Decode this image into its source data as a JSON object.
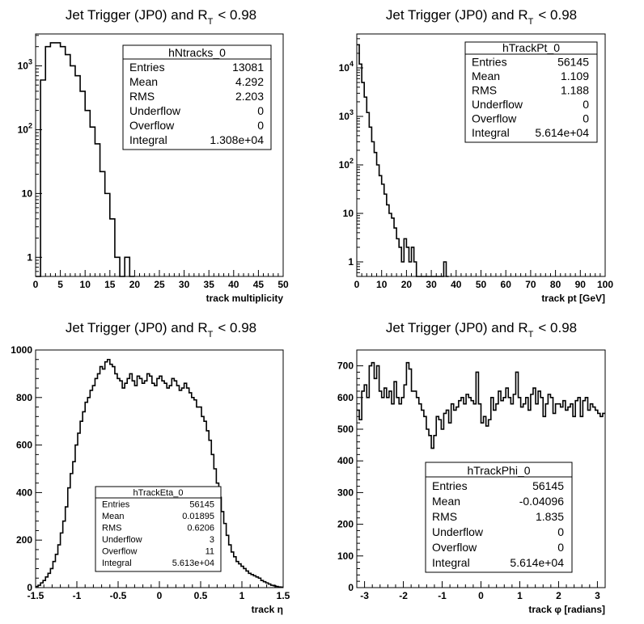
{
  "chart_data": [
    {
      "type": "histogram",
      "title": "Jet Trigger (JP0) and R",
      "title_sub": "T",
      "title_tail": "< 0.98",
      "xlabel": "track multiplicity",
      "ylabel": "",
      "log_y": true,
      "xlim": [
        0,
        50
      ],
      "ylim_log10": [
        -0.3,
        3.5
      ],
      "xticks": [
        "0",
        "5",
        "10",
        "15",
        "20",
        "25",
        "30",
        "35",
        "40",
        "45",
        "50"
      ],
      "yticks": [
        "1",
        "10",
        "10",
        "10"
      ],
      "ytick_exp": [
        "",
        "",
        "2",
        "3"
      ],
      "bin_edges_start": 0,
      "bin_width": 1,
      "values": [
        0,
        600,
        2000,
        2300,
        2300,
        2000,
        1500,
        1000,
        700,
        400,
        200,
        110,
        60,
        22,
        10,
        4,
        1,
        0,
        1,
        0
      ],
      "stats": {
        "name": "hNtracks_0",
        "rows": [
          {
            "label": "Entries",
            "value": "13081"
          },
          {
            "label": "Mean",
            "value": "4.292"
          },
          {
            "label": "RMS",
            "value": "2.203"
          },
          {
            "label": "Underflow",
            "value": "0"
          },
          {
            "label": "Overflow",
            "value": "0"
          },
          {
            "label": "Integral",
            "value": "1.308e+04"
          }
        ]
      }
    },
    {
      "type": "histogram",
      "title": "Jet Trigger (JP0) and R",
      "title_sub": "T",
      "title_tail": "< 0.98",
      "xlabel": "track pt [GeV]",
      "ylabel": "",
      "log_y": true,
      "xlim": [
        0,
        100
      ],
      "ylim_log10": [
        -0.3,
        4.7
      ],
      "xticks": [
        "0",
        "10",
        "20",
        "30",
        "40",
        "50",
        "60",
        "70",
        "80",
        "90",
        "100"
      ],
      "yticks": [
        "1",
        "10",
        "10",
        "10",
        "10"
      ],
      "ytick_exp": [
        "",
        "",
        "2",
        "3",
        "4"
      ],
      "bin_edges_start": 0,
      "bin_width": 1,
      "values": [
        30000,
        12000,
        5000,
        2500,
        1200,
        600,
        300,
        180,
        100,
        60,
        40,
        25,
        15,
        10,
        8,
        5,
        3,
        2,
        1,
        3,
        2,
        1,
        2,
        1,
        0,
        0,
        0,
        0,
        0,
        0,
        0,
        0,
        0,
        0,
        0,
        1,
        0
      ],
      "stats": {
        "name": "hTrackPt_0",
        "rows": [
          {
            "label": "Entries",
            "value": "56145"
          },
          {
            "label": "Mean",
            "value": "1.109"
          },
          {
            "label": "RMS",
            "value": "1.188"
          },
          {
            "label": "Underflow",
            "value": "0"
          },
          {
            "label": "Overflow",
            "value": "0"
          },
          {
            "label": "Integral",
            "value": "5.614e+04"
          }
        ]
      }
    },
    {
      "type": "histogram",
      "title": "Jet Trigger (JP0) and R",
      "title_sub": "T",
      "title_tail": "< 0.98",
      "xlabel": "track η",
      "ylabel": "",
      "log_y": false,
      "xlim": [
        -1.5,
        1.5
      ],
      "ylim": [
        0,
        1000
      ],
      "xticks": [
        "-1.5",
        "-1",
        "-0.5",
        "0",
        "0.5",
        "1",
        "1.5"
      ],
      "yticks": [
        "0",
        "200",
        "400",
        "600",
        "800",
        "1000"
      ],
      "bin_edges_start": -1.5,
      "bin_width": 0.03,
      "values": [
        5,
        10,
        20,
        30,
        45,
        60,
        80,
        110,
        140,
        180,
        230,
        280,
        340,
        420,
        480,
        530,
        600,
        650,
        700,
        740,
        780,
        800,
        830,
        850,
        880,
        900,
        930,
        920,
        950,
        960,
        940,
        930,
        900,
        880,
        870,
        840,
        860,
        880,
        900,
        870,
        850,
        890,
        880,
        860,
        870,
        900,
        890,
        860,
        850,
        880,
        890,
        870,
        860,
        840,
        850,
        880,
        870,
        850,
        830,
        840,
        860,
        840,
        820,
        800,
        790,
        760,
        760,
        720,
        700,
        660,
        620,
        560,
        500,
        440,
        380,
        320,
        270,
        220,
        180,
        150,
        130,
        110,
        100,
        90,
        80,
        70,
        60,
        55,
        50,
        45,
        40,
        30,
        25,
        20,
        15,
        10,
        8,
        5,
        3,
        2
      ],
      "stats": {
        "name": "hTrackEta_0",
        "rows": [
          {
            "label": "Entries",
            "value": "56145"
          },
          {
            "label": "Mean",
            "value": "0.01895"
          },
          {
            "label": "RMS",
            "value": "0.6206"
          },
          {
            "label": "Underflow",
            "value": "3"
          },
          {
            "label": "Overflow",
            "value": "11"
          },
          {
            "label": "Integral",
            "value": "5.613e+04"
          }
        ]
      }
    },
    {
      "type": "histogram",
      "title": "Jet Trigger (JP0) and R",
      "title_sub": "T",
      "title_tail": "< 0.98",
      "xlabel": "track φ [radians]",
      "ylabel": "",
      "log_y": false,
      "xlim": [
        -3.2,
        3.2
      ],
      "ylim": [
        0,
        750
      ],
      "xticks": [
        "-3",
        "-2",
        "-1",
        "0",
        "1",
        "2",
        "3"
      ],
      "xtick_values": [
        -3,
        -2,
        -1,
        0,
        1,
        2,
        3
      ],
      "yticks": [
        "0",
        "100",
        "200",
        "300",
        "400",
        "500",
        "600",
        "700"
      ],
      "bin_edges_start": -3.2,
      "bin_width": 0.064,
      "values": [
        560,
        530,
        620,
        640,
        600,
        700,
        710,
        660,
        700,
        620,
        600,
        630,
        600,
        620,
        580,
        650,
        600,
        580,
        600,
        640,
        710,
        690,
        620,
        620,
        600,
        580,
        560,
        540,
        500,
        480,
        440,
        480,
        540,
        530,
        500,
        550,
        560,
        520,
        580,
        560,
        570,
        590,
        600,
        580,
        610,
        600,
        590,
        580,
        680,
        580,
        520,
        540,
        510,
        530,
        600,
        560,
        580,
        620,
        590,
        600,
        630,
        600,
        580,
        610,
        680,
        600,
        570,
        580,
        600,
        560,
        610,
        630,
        580,
        620,
        600,
        540,
        580,
        610,
        600,
        550,
        580,
        580,
        570,
        590,
        560,
        570,
        580,
        540,
        590,
        600,
        540,
        590,
        600,
        560,
        580,
        570,
        560,
        550,
        540,
        550
      ],
      "stats": {
        "name": "hTrackPhi_0",
        "rows": [
          {
            "label": "Entries",
            "value": "56145"
          },
          {
            "label": "Mean",
            "value": "-0.04096"
          },
          {
            "label": "RMS",
            "value": "1.835"
          },
          {
            "label": "Underflow",
            "value": "0"
          },
          {
            "label": "Overflow",
            "value": "0"
          },
          {
            "label": "Integral",
            "value": "5.614e+04"
          }
        ]
      }
    }
  ]
}
